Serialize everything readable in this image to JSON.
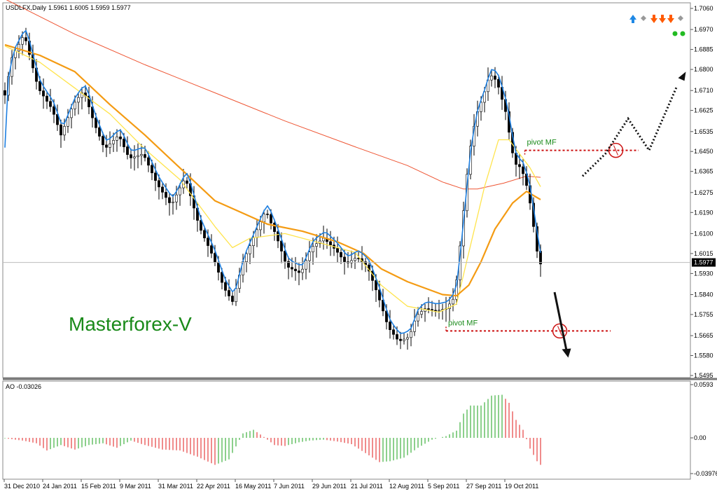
{
  "chart_data": {
    "type": "candlestick",
    "symbol_header": "USDLFX,Daily",
    "ohlc_header": "1.5961 1.6005 1.5959 1.5977",
    "indicator_header": "AO -0.03026",
    "watermark": "Masterforex-V",
    "current_price": "1.5977",
    "price_axis": {
      "ticks": [
        "1.7060",
        "1.6970",
        "1.6885",
        "1.6800",
        "1.6710",
        "1.6625",
        "1.6535",
        "1.6450",
        "1.6365",
        "1.6275",
        "1.6190",
        "1.6100",
        "1.6015",
        "1.5930",
        "1.5840",
        "1.5755",
        "1.5665",
        "1.5580",
        "1.5495"
      ],
      "range": [
        1.5495,
        1.706
      ]
    },
    "ao_axis": {
      "ticks": [
        "0.0593",
        "0.00",
        "-0.03976"
      ],
      "range": [
        -0.03976,
        0.0593
      ]
    },
    "date_axis": {
      "ticks": [
        "31 Dec 2010",
        "24 Jan 2011",
        "15 Feb 2011",
        "9 Mar 2011",
        "31 Mar 2011",
        "22 Apr 2011",
        "16 May 2011",
        "7 Jun 2011",
        "29 Jun 2011",
        "21 Jul 2011",
        "12 Aug 2011",
        "5 Sep 2011",
        "27 Sep 2011",
        "19 Oct 2011"
      ]
    },
    "price_path": [
      [
        0,
        1.665
      ],
      [
        5,
        1.685
      ],
      [
        12,
        1.695
      ],
      [
        20,
        1.672
      ],
      [
        28,
        1.663
      ],
      [
        33,
        1.652
      ],
      [
        40,
        1.665
      ],
      [
        46,
        1.671
      ],
      [
        52,
        1.657
      ],
      [
        58,
        1.646
      ],
      [
        66,
        1.652
      ],
      [
        72,
        1.642
      ],
      [
        80,
        1.644
      ],
      [
        88,
        1.631
      ],
      [
        96,
        1.622
      ],
      [
        104,
        1.634
      ],
      [
        112,
        1.613
      ],
      [
        120,
        1.6
      ],
      [
        126,
        1.587
      ],
      [
        131,
        1.581
      ],
      [
        137,
        1.598
      ],
      [
        144,
        1.61
      ],
      [
        150,
        1.62
      ],
      [
        156,
        1.609
      ],
      [
        162,
        1.596
      ],
      [
        170,
        1.593
      ],
      [
        176,
        1.604
      ],
      [
        183,
        1.608
      ],
      [
        190,
        1.603
      ],
      [
        196,
        1.597
      ],
      [
        202,
        1.6
      ],
      [
        208,
        1.596
      ],
      [
        214,
        1.584
      ],
      [
        220,
        1.57
      ],
      [
        226,
        1.564
      ],
      [
        232,
        1.566
      ],
      [
        236,
        1.575
      ],
      [
        241,
        1.578
      ],
      [
        247,
        1.577
      ],
      [
        253,
        1.578
      ],
      [
        258,
        1.583
      ],
      [
        262,
        1.612
      ],
      [
        266,
        1.643
      ],
      [
        270,
        1.66
      ],
      [
        274,
        1.668
      ],
      [
        278,
        1.678
      ],
      [
        282,
        1.675
      ],
      [
        287,
        1.662
      ],
      [
        292,
        1.64
      ],
      [
        296,
        1.638
      ],
      [
        300,
        1.628
      ],
      [
        304,
        1.608
      ],
      [
        306,
        1.597
      ]
    ],
    "ao_path": [
      [
        0,
        -0.0005
      ],
      [
        10,
        -0.003
      ],
      [
        18,
        -0.006
      ],
      [
        24,
        -0.014
      ],
      [
        32,
        -0.008
      ],
      [
        40,
        -0.013
      ],
      [
        48,
        -0.008
      ],
      [
        56,
        -0.006
      ],
      [
        64,
        -0.011
      ],
      [
        72,
        -0.003
      ],
      [
        80,
        -0.008
      ],
      [
        90,
        -0.013
      ],
      [
        100,
        -0.014
      ],
      [
        110,
        -0.021
      ],
      [
        120,
        -0.03
      ],
      [
        128,
        -0.024
      ],
      [
        136,
        0.005
      ],
      [
        142,
        0.009
      ],
      [
        148,
        0.001
      ],
      [
        154,
        -0.008
      ],
      [
        160,
        -0.009
      ],
      [
        168,
        -0.005
      ],
      [
        174,
        -0.003
      ],
      [
        182,
        -0.002
      ],
      [
        190,
        -0.004
      ],
      [
        198,
        -0.007
      ],
      [
        206,
        -0.017
      ],
      [
        214,
        -0.027
      ],
      [
        220,
        -0.026
      ],
      [
        228,
        -0.022
      ],
      [
        236,
        -0.011
      ],
      [
        244,
        -0.002
      ],
      [
        252,
        0.002
      ],
      [
        258,
        0.008
      ],
      [
        262,
        0.027
      ],
      [
        266,
        0.036
      ],
      [
        272,
        0.036
      ],
      [
        278,
        0.047
      ],
      [
        284,
        0.048
      ],
      [
        288,
        0.039
      ],
      [
        292,
        0.02
      ],
      [
        296,
        0.009
      ],
      [
        300,
        -0.012
      ],
      [
        304,
        -0.026
      ],
      [
        306,
        -0.03
      ]
    ],
    "sma_slow": [
      [
        0,
        1.71
      ],
      [
        40,
        1.695
      ],
      [
        80,
        1.682
      ],
      [
        120,
        1.67
      ],
      [
        160,
        1.658
      ],
      [
        200,
        1.647
      ],
      [
        230,
        1.639
      ],
      [
        250,
        1.632
      ],
      [
        262,
        1.629
      ],
      [
        270,
        1.629
      ],
      [
        285,
        1.6315
      ],
      [
        298,
        1.6345
      ],
      [
        306,
        1.634
      ]
    ],
    "ma_orange": [
      [
        0,
        1.6905
      ],
      [
        20,
        1.686
      ],
      [
        40,
        1.679
      ],
      [
        60,
        1.665
      ],
      [
        80,
        1.652
      ],
      [
        100,
        1.638
      ],
      [
        120,
        1.624
      ],
      [
        135,
        1.619
      ],
      [
        150,
        1.614
      ],
      [
        170,
        1.611
      ],
      [
        190,
        1.6065
      ],
      [
        205,
        1.6015
      ],
      [
        215,
        1.595
      ],
      [
        230,
        1.5895
      ],
      [
        250,
        1.584
      ],
      [
        258,
        1.5835
      ],
      [
        265,
        1.588
      ],
      [
        272,
        1.598
      ],
      [
        280,
        1.612
      ],
      [
        290,
        1.623
      ],
      [
        298,
        1.628
      ],
      [
        306,
        1.6245
      ]
    ],
    "ma_yellow": [
      [
        0,
        1.69
      ],
      [
        20,
        1.683
      ],
      [
        40,
        1.672
      ],
      [
        60,
        1.661
      ],
      [
        80,
        1.646
      ],
      [
        100,
        1.633
      ],
      [
        120,
        1.613
      ],
      [
        130,
        1.604
      ],
      [
        140,
        1.608
      ],
      [
        160,
        1.61
      ],
      [
        180,
        1.606
      ],
      [
        200,
        1.602
      ],
      [
        215,
        1.588
      ],
      [
        230,
        1.579
      ],
      [
        248,
        1.5765
      ],
      [
        258,
        1.58
      ],
      [
        266,
        1.605
      ],
      [
        274,
        1.63
      ],
      [
        282,
        1.65
      ],
      [
        288,
        1.65
      ],
      [
        295,
        1.643
      ],
      [
        300,
        1.638
      ],
      [
        306,
        1.63
      ]
    ],
    "ma_blue_shift": 0.003,
    "price_line_level": 1.5977,
    "annotations": [
      {
        "label": "pivot MF",
        "level": 1.6455,
        "from_day": 297,
        "to_day": 362,
        "arrow": "up"
      },
      {
        "label": "pivot MF",
        "level": 1.5685,
        "from_day": 252,
        "to_day": 346,
        "arrow": "down"
      }
    ],
    "signal_arrows_up_colors": [
      "#1e88e5"
    ],
    "signal_arrows_down_colors": [
      "#ff5a00",
      "#ff5a00",
      "#ff5a00"
    ],
    "signal_dots_color": "#22bb22",
    "colors": {
      "candle": "#000000",
      "ma_blue": "#1e7fe0",
      "ma_yellow": "#ffe44c",
      "ma_orange": "#f49b13",
      "sma_slow": "#ee5533",
      "ao_up": "#18a018",
      "ao_down": "#e01818",
      "pivot_line": "#cc1111",
      "pivot_text": "#1a8a1a",
      "watermark": "#1a8a1a"
    }
  }
}
